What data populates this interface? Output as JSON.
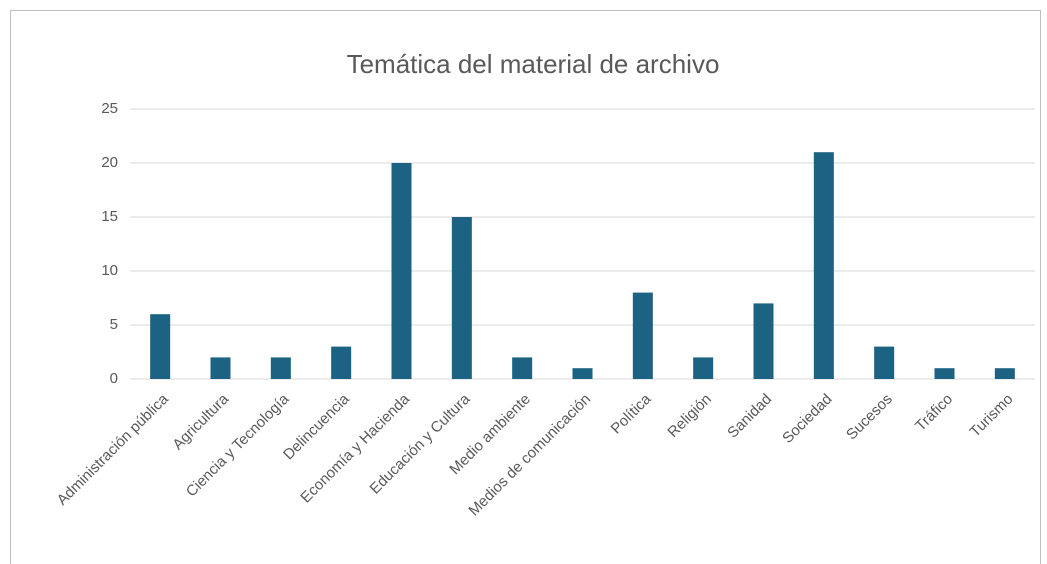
{
  "chart_data": {
    "type": "bar",
    "title": "Temática del material de archivo",
    "categories": [
      "Administración pública",
      "Agricultura",
      "Ciencia y Tecnología",
      "Delincuencia",
      "Economía y Hacienda",
      "Educación y Cultura",
      "Medio ambiente",
      "Medios de comunicación",
      "Política",
      "Religión",
      "Sanidad",
      "Sociedad",
      "Sucesos",
      "Tráfico",
      "Turismo"
    ],
    "values": [
      6,
      2,
      2,
      3,
      20,
      15,
      2,
      1,
      8,
      2,
      7,
      21,
      3,
      1,
      1
    ],
    "color": "#1b6283",
    "ylim": [
      0,
      25
    ],
    "yticks": [
      0,
      5,
      10,
      15,
      20,
      25
    ],
    "grid": true
  }
}
